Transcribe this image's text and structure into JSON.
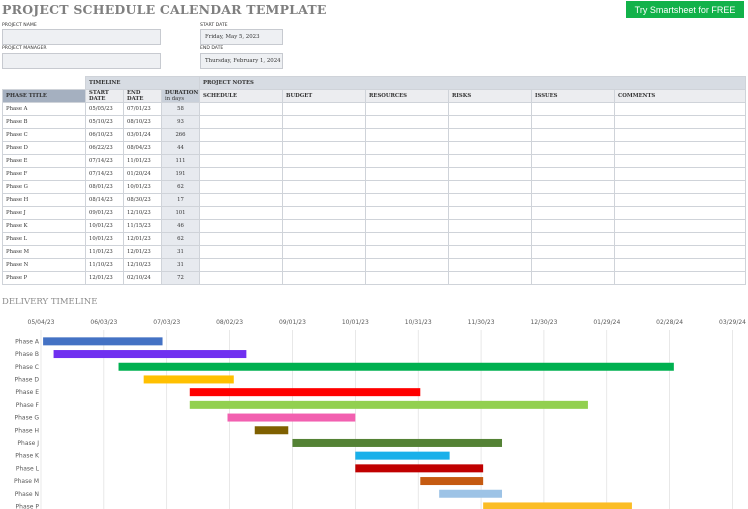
{
  "title": "PROJECT SCHEDULE CALENDAR TEMPLATE",
  "cta": "Try Smartsheet for FREE",
  "fields": {
    "project_name_label": "PROJECT NAME",
    "project_manager_label": "PROJECT MANAGER",
    "start_date_label": "START DATE",
    "start_date": "Friday, May 5, 2023",
    "end_date_label": "END DATE",
    "end_date": "Thursday, February 1, 2024"
  },
  "table": {
    "group_headers": {
      "timeline": "TIMELINE",
      "notes": "PROJECT NOTES"
    },
    "headers": {
      "phase": "PHASE TITLE",
      "start_l1": "START",
      "start_l2": "DATE",
      "end_l1": "END",
      "end_l2": "DATE",
      "duration": "DURATION",
      "duration_unit": "in days",
      "schedule": "SCHEDULE",
      "budget": "BUDGET",
      "resources": "RESOURCES",
      "risks": "RISKS",
      "issues": "ISSUES",
      "comments": "COMMENTS"
    },
    "rows": [
      {
        "phase": "Phase A",
        "start": "05/05/23",
        "end": "07/01/23",
        "duration": "58"
      },
      {
        "phase": "Phase B",
        "start": "05/10/23",
        "end": "08/10/23",
        "duration": "93"
      },
      {
        "phase": "Phase C",
        "start": "06/10/23",
        "end": "03/01/24",
        "duration": "266"
      },
      {
        "phase": "Phase D",
        "start": "06/22/23",
        "end": "08/04/23",
        "duration": "44"
      },
      {
        "phase": "Phase E",
        "start": "07/14/23",
        "end": "11/01/23",
        "duration": "111"
      },
      {
        "phase": "Phase F",
        "start": "07/14/23",
        "end": "01/20/24",
        "duration": "191"
      },
      {
        "phase": "Phase G",
        "start": "08/01/23",
        "end": "10/01/23",
        "duration": "62"
      },
      {
        "phase": "Phase H",
        "start": "08/14/23",
        "end": "08/30/23",
        "duration": "17"
      },
      {
        "phase": "Phase J",
        "start": "09/01/23",
        "end": "12/10/23",
        "duration": "101"
      },
      {
        "phase": "Phase K",
        "start": "10/01/23",
        "end": "11/15/23",
        "duration": "46"
      },
      {
        "phase": "Phase L",
        "start": "10/01/23",
        "end": "12/01/23",
        "duration": "62"
      },
      {
        "phase": "Phase M",
        "start": "11/01/23",
        "end": "12/01/23",
        "duration": "31"
      },
      {
        "phase": "Phase N",
        "start": "11/10/23",
        "end": "12/10/23",
        "duration": "31"
      },
      {
        "phase": "Phase P",
        "start": "12/01/23",
        "end": "02/10/24",
        "duration": "72"
      }
    ]
  },
  "delivery_title": "DELIVERY TIMELINE",
  "chart_data": {
    "type": "bar",
    "orientation": "horizontal",
    "x_ticks": [
      "05/04/23",
      "06/03/23",
      "07/03/23",
      "08/02/23",
      "09/01/23",
      "10/01/23",
      "10/31/23",
      "11/30/23",
      "12/30/23",
      "01/29/24",
      "02/28/24",
      "03/29/24"
    ],
    "xlim": [
      "05/04/23",
      "04/03/24"
    ],
    "grid": true,
    "tasks": [
      {
        "label": "Phase A",
        "start": "05/05/23",
        "end": "07/01/23",
        "color": "#4472c4"
      },
      {
        "label": "Phase B",
        "start": "05/10/23",
        "end": "08/10/23",
        "color": "#7030f0"
      },
      {
        "label": "Phase C",
        "start": "06/10/23",
        "end": "03/01/24",
        "color": "#00b050"
      },
      {
        "label": "Phase D",
        "start": "06/22/23",
        "end": "08/04/23",
        "color": "#ffc000"
      },
      {
        "label": "Phase E",
        "start": "07/14/23",
        "end": "11/01/23",
        "color": "#ff0000"
      },
      {
        "label": "Phase F",
        "start": "07/14/23",
        "end": "01/20/24",
        "color": "#92d050"
      },
      {
        "label": "Phase G",
        "start": "08/01/23",
        "end": "10/01/23",
        "color": "#f260b0"
      },
      {
        "label": "Phase H",
        "start": "08/14/23",
        "end": "08/30/23",
        "color": "#7f6000"
      },
      {
        "label": "Phase J",
        "start": "09/01/23",
        "end": "12/10/23",
        "color": "#548235"
      },
      {
        "label": "Phase K",
        "start": "10/01/23",
        "end": "11/15/23",
        "color": "#1ab0ea"
      },
      {
        "label": "Phase L",
        "start": "10/01/23",
        "end": "12/01/23",
        "color": "#c00000"
      },
      {
        "label": "Phase M",
        "start": "11/01/23",
        "end": "12/01/23",
        "color": "#c55a11"
      },
      {
        "label": "Phase N",
        "start": "11/10/23",
        "end": "12/10/23",
        "color": "#9dc3e6"
      },
      {
        "label": "Phase P",
        "start": "12/01/23",
        "end": "02/10/24",
        "color": "#fbbd25"
      }
    ]
  }
}
